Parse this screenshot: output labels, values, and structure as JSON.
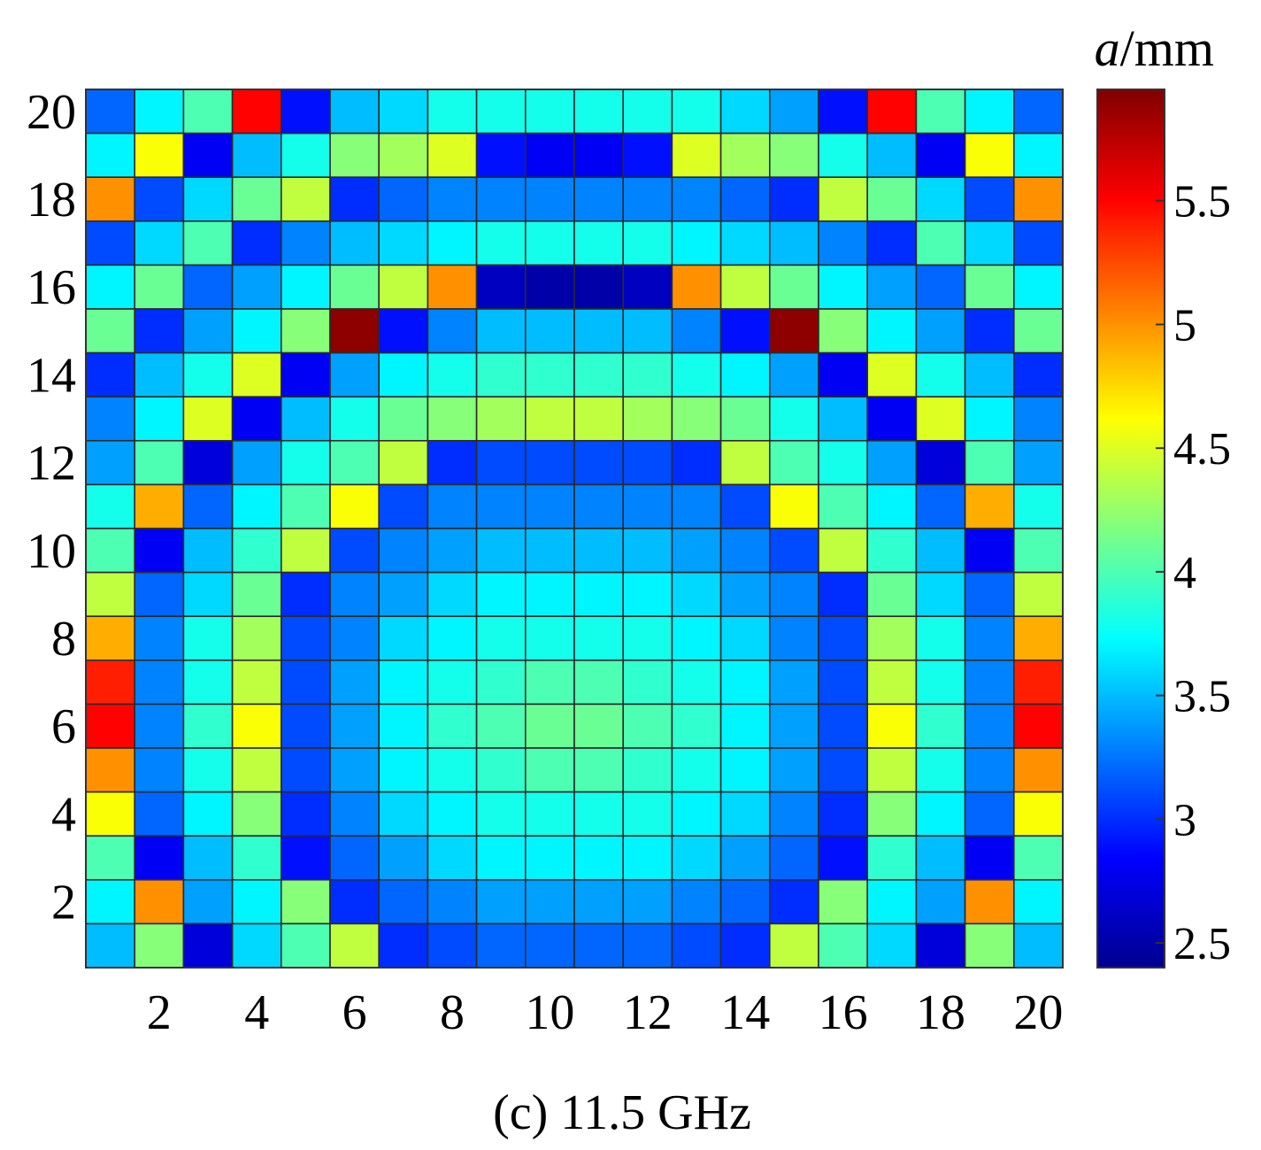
{
  "chart_data": {
    "type": "heatmap",
    "title": "",
    "caption": "(c) 11.5 GHz",
    "xlabel": "",
    "ylabel": "",
    "x_ticks": [
      "2",
      "4",
      "6",
      "8",
      "10",
      "12",
      "14",
      "16",
      "18",
      "20"
    ],
    "y_ticks": [
      "2",
      "4",
      "6",
      "8",
      "10",
      "12",
      "14",
      "16",
      "18",
      "20"
    ],
    "x_range": [
      1,
      20
    ],
    "y_range": [
      1,
      20
    ],
    "colorbar": {
      "label_italic": "a",
      "label_rest": "/mm",
      "ticks": [
        "2.5",
        "3",
        "3.5",
        "4",
        "4.5",
        "5",
        "5.5"
      ],
      "range": [
        2.4,
        5.95
      ],
      "colormap": "jet"
    },
    "rows_top_to_bottom": [
      [
        3.2,
        3.7,
        4.0,
        5.5,
        2.9,
        3.5,
        3.6,
        3.8,
        3.8,
        3.8,
        3.8,
        3.8,
        3.8,
        3.6,
        3.4,
        2.9,
        5.5,
        4.0,
        3.7,
        3.2
      ],
      [
        3.7,
        4.6,
        2.8,
        3.5,
        3.8,
        4.2,
        4.3,
        4.5,
        2.9,
        2.8,
        2.8,
        2.9,
        4.5,
        4.3,
        4.2,
        3.8,
        3.5,
        2.8,
        4.6,
        3.7
      ],
      [
        5.0,
        3.1,
        3.6,
        4.1,
        4.4,
        3.0,
        3.2,
        3.3,
        3.3,
        3.3,
        3.3,
        3.3,
        3.3,
        3.2,
        3.0,
        4.4,
        4.1,
        3.6,
        3.1,
        5.0
      ],
      [
        3.1,
        3.6,
        4.0,
        3.0,
        3.3,
        3.5,
        3.6,
        3.7,
        3.8,
        3.8,
        3.8,
        3.8,
        3.7,
        3.6,
        3.5,
        3.3,
        3.0,
        4.0,
        3.6,
        3.1
      ],
      [
        3.7,
        4.1,
        3.2,
        3.4,
        3.7,
        4.1,
        4.4,
        5.0,
        2.6,
        2.5,
        2.5,
        2.6,
        5.0,
        4.4,
        4.1,
        3.7,
        3.4,
        3.2,
        4.1,
        3.7
      ],
      [
        4.1,
        3.0,
        3.4,
        3.7,
        4.2,
        5.9,
        2.9,
        3.3,
        3.5,
        3.5,
        3.5,
        3.5,
        3.3,
        2.9,
        5.9,
        4.2,
        3.7,
        3.4,
        3.0,
        4.1
      ],
      [
        3.0,
        3.5,
        3.8,
        4.5,
        2.8,
        3.4,
        3.7,
        3.8,
        3.9,
        3.9,
        3.9,
        3.9,
        3.8,
        3.7,
        3.4,
        2.8,
        4.5,
        3.8,
        3.5,
        3.0
      ],
      [
        3.3,
        3.7,
        4.5,
        2.8,
        3.5,
        3.8,
        4.1,
        4.2,
        4.3,
        4.4,
        4.4,
        4.3,
        4.2,
        4.1,
        3.8,
        3.5,
        2.8,
        4.5,
        3.7,
        3.3
      ],
      [
        3.4,
        4.0,
        2.7,
        3.4,
        3.8,
        4.0,
        4.4,
        3.0,
        3.1,
        3.1,
        3.1,
        3.1,
        3.0,
        4.4,
        4.0,
        3.8,
        3.4,
        2.7,
        4.0,
        3.4
      ],
      [
        3.8,
        4.9,
        3.2,
        3.7,
        4.0,
        4.6,
        3.1,
        3.3,
        3.3,
        3.3,
        3.3,
        3.3,
        3.3,
        3.1,
        4.6,
        4.0,
        3.7,
        3.2,
        4.9,
        3.8
      ],
      [
        4.0,
        2.8,
        3.5,
        3.9,
        4.4,
        3.1,
        3.3,
        3.4,
        3.5,
        3.5,
        3.5,
        3.5,
        3.4,
        3.3,
        3.1,
        4.4,
        3.9,
        3.5,
        2.8,
        4.0
      ],
      [
        4.4,
        3.2,
        3.6,
        4.1,
        3.0,
        3.3,
        3.4,
        3.6,
        3.7,
        3.7,
        3.7,
        3.7,
        3.6,
        3.4,
        3.3,
        3.0,
        4.1,
        3.6,
        3.2,
        4.4
      ],
      [
        4.9,
        3.3,
        3.8,
        4.3,
        3.1,
        3.3,
        3.6,
        3.7,
        3.8,
        3.8,
        3.8,
        3.8,
        3.7,
        3.6,
        3.3,
        3.1,
        4.3,
        3.8,
        3.3,
        4.9
      ],
      [
        5.4,
        3.3,
        3.8,
        4.4,
        3.1,
        3.4,
        3.7,
        3.8,
        3.9,
        4.0,
        4.0,
        3.9,
        3.8,
        3.7,
        3.4,
        3.1,
        4.4,
        3.8,
        3.3,
        5.4
      ],
      [
        5.5,
        3.3,
        3.9,
        4.6,
        3.1,
        3.4,
        3.7,
        3.9,
        4.0,
        4.1,
        4.1,
        4.0,
        3.9,
        3.7,
        3.4,
        3.1,
        4.6,
        3.9,
        3.3,
        5.5
      ],
      [
        5.0,
        3.3,
        3.8,
        4.4,
        3.1,
        3.4,
        3.7,
        3.8,
        3.9,
        4.0,
        4.0,
        3.9,
        3.8,
        3.7,
        3.4,
        3.1,
        4.4,
        3.8,
        3.3,
        5.0
      ],
      [
        4.6,
        3.2,
        3.7,
        4.2,
        3.0,
        3.3,
        3.6,
        3.7,
        3.8,
        3.8,
        3.8,
        3.8,
        3.7,
        3.6,
        3.3,
        3.0,
        4.2,
        3.7,
        3.2,
        4.6
      ],
      [
        4.0,
        2.8,
        3.5,
        3.9,
        2.9,
        3.2,
        3.4,
        3.6,
        3.7,
        3.7,
        3.7,
        3.7,
        3.6,
        3.4,
        3.2,
        2.9,
        3.9,
        3.5,
        2.8,
        4.0
      ],
      [
        3.7,
        5.0,
        3.4,
        3.7,
        4.2,
        3.0,
        3.2,
        3.3,
        3.4,
        3.4,
        3.4,
        3.4,
        3.3,
        3.2,
        3.0,
        4.2,
        3.7,
        3.4,
        5.0,
        3.7
      ],
      [
        3.5,
        4.2,
        2.7,
        3.6,
        4.0,
        4.4,
        3.0,
        3.1,
        3.2,
        3.2,
        3.2,
        3.2,
        3.1,
        3.0,
        4.4,
        4.0,
        3.6,
        2.7,
        4.2,
        3.5
      ]
    ]
  }
}
